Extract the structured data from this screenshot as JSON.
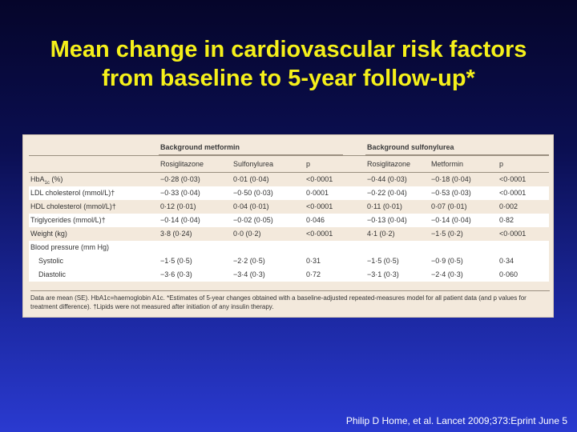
{
  "slide": {
    "title_line1": "Mean change in cardiovascular risk factors",
    "title_line2": "from baseline to 5-year follow-up*",
    "citation": "Philip D Home, et al. Lancet 2009;373:Eprint June 5"
  },
  "table": {
    "group1": "Background metformin",
    "group2": "Background sulfonylurea",
    "columns": [
      "",
      "Rosiglitazone",
      "Sulfonylurea",
      "p",
      "Rosiglitazone",
      "Metformin",
      "p"
    ],
    "rows": [
      {
        "label": "HbA1c (%)",
        "cells": [
          "−0·28 (0·03)",
          "0·01 (0·04)",
          "<0·0001",
          "−0·44 (0·03)",
          "−0·18 (0·04)",
          "<0·0001"
        ]
      },
      {
        "label": "LDL cholesterol (mmol/L)†",
        "cells": [
          "−0·33 (0·04)",
          "−0·50 (0·03)",
          "0·0001",
          "−0·22 (0·04)",
          "−0·53 (0·03)",
          "<0·0001"
        ]
      },
      {
        "label": "HDL cholesterol (mmol/L)†",
        "cells": [
          "0·12 (0·01)",
          "0·04 (0·01)",
          "<0·0001",
          "0·11 (0·01)",
          "0·07 (0·01)",
          "0·002"
        ]
      },
      {
        "label": "Triglycerides (mmol/L)†",
        "cells": [
          "−0·14 (0·04)",
          "−0·02 (0·05)",
          "0·046",
          "−0·13 (0·04)",
          "−0·14 (0·04)",
          "0·82"
        ]
      },
      {
        "label": "Weight (kg)",
        "cells": [
          "3·8 (0·24)",
          "0·0 (0·2)",
          "<0·0001",
          "4·1 (0·2)",
          "−1·5 (0·2)",
          "<0·0001"
        ]
      }
    ],
    "bp_label": "Blood pressure (mm Hg)",
    "bp_rows": [
      {
        "label": "Systolic",
        "cells": [
          "−1·5 (0·5)",
          "−2·2 (0·5)",
          "0·31",
          "−1·5 (0·5)",
          "−0·9 (0·5)",
          "0·34"
        ]
      },
      {
        "label": "Diastolic",
        "cells": [
          "−3·6 (0·3)",
          "−3·4 (0·3)",
          "0·72",
          "−3·1 (0·3)",
          "−2·4 (0·3)",
          "0·060"
        ]
      }
    ],
    "footnote": "Data are mean (SE). HbA1c=haemoglobin A1c. *Estimates of 5-year changes obtained with a baseline-adjusted repeated-measures model for all patient data (and p values for treatment difference). †Lipids were not measured after initiation of any insulin therapy."
  },
  "colors": {
    "title": "#f5f01a",
    "panel": "#f3e9dc",
    "background_top": "#05052a",
    "background_bottom": "#2a3ad0"
  }
}
